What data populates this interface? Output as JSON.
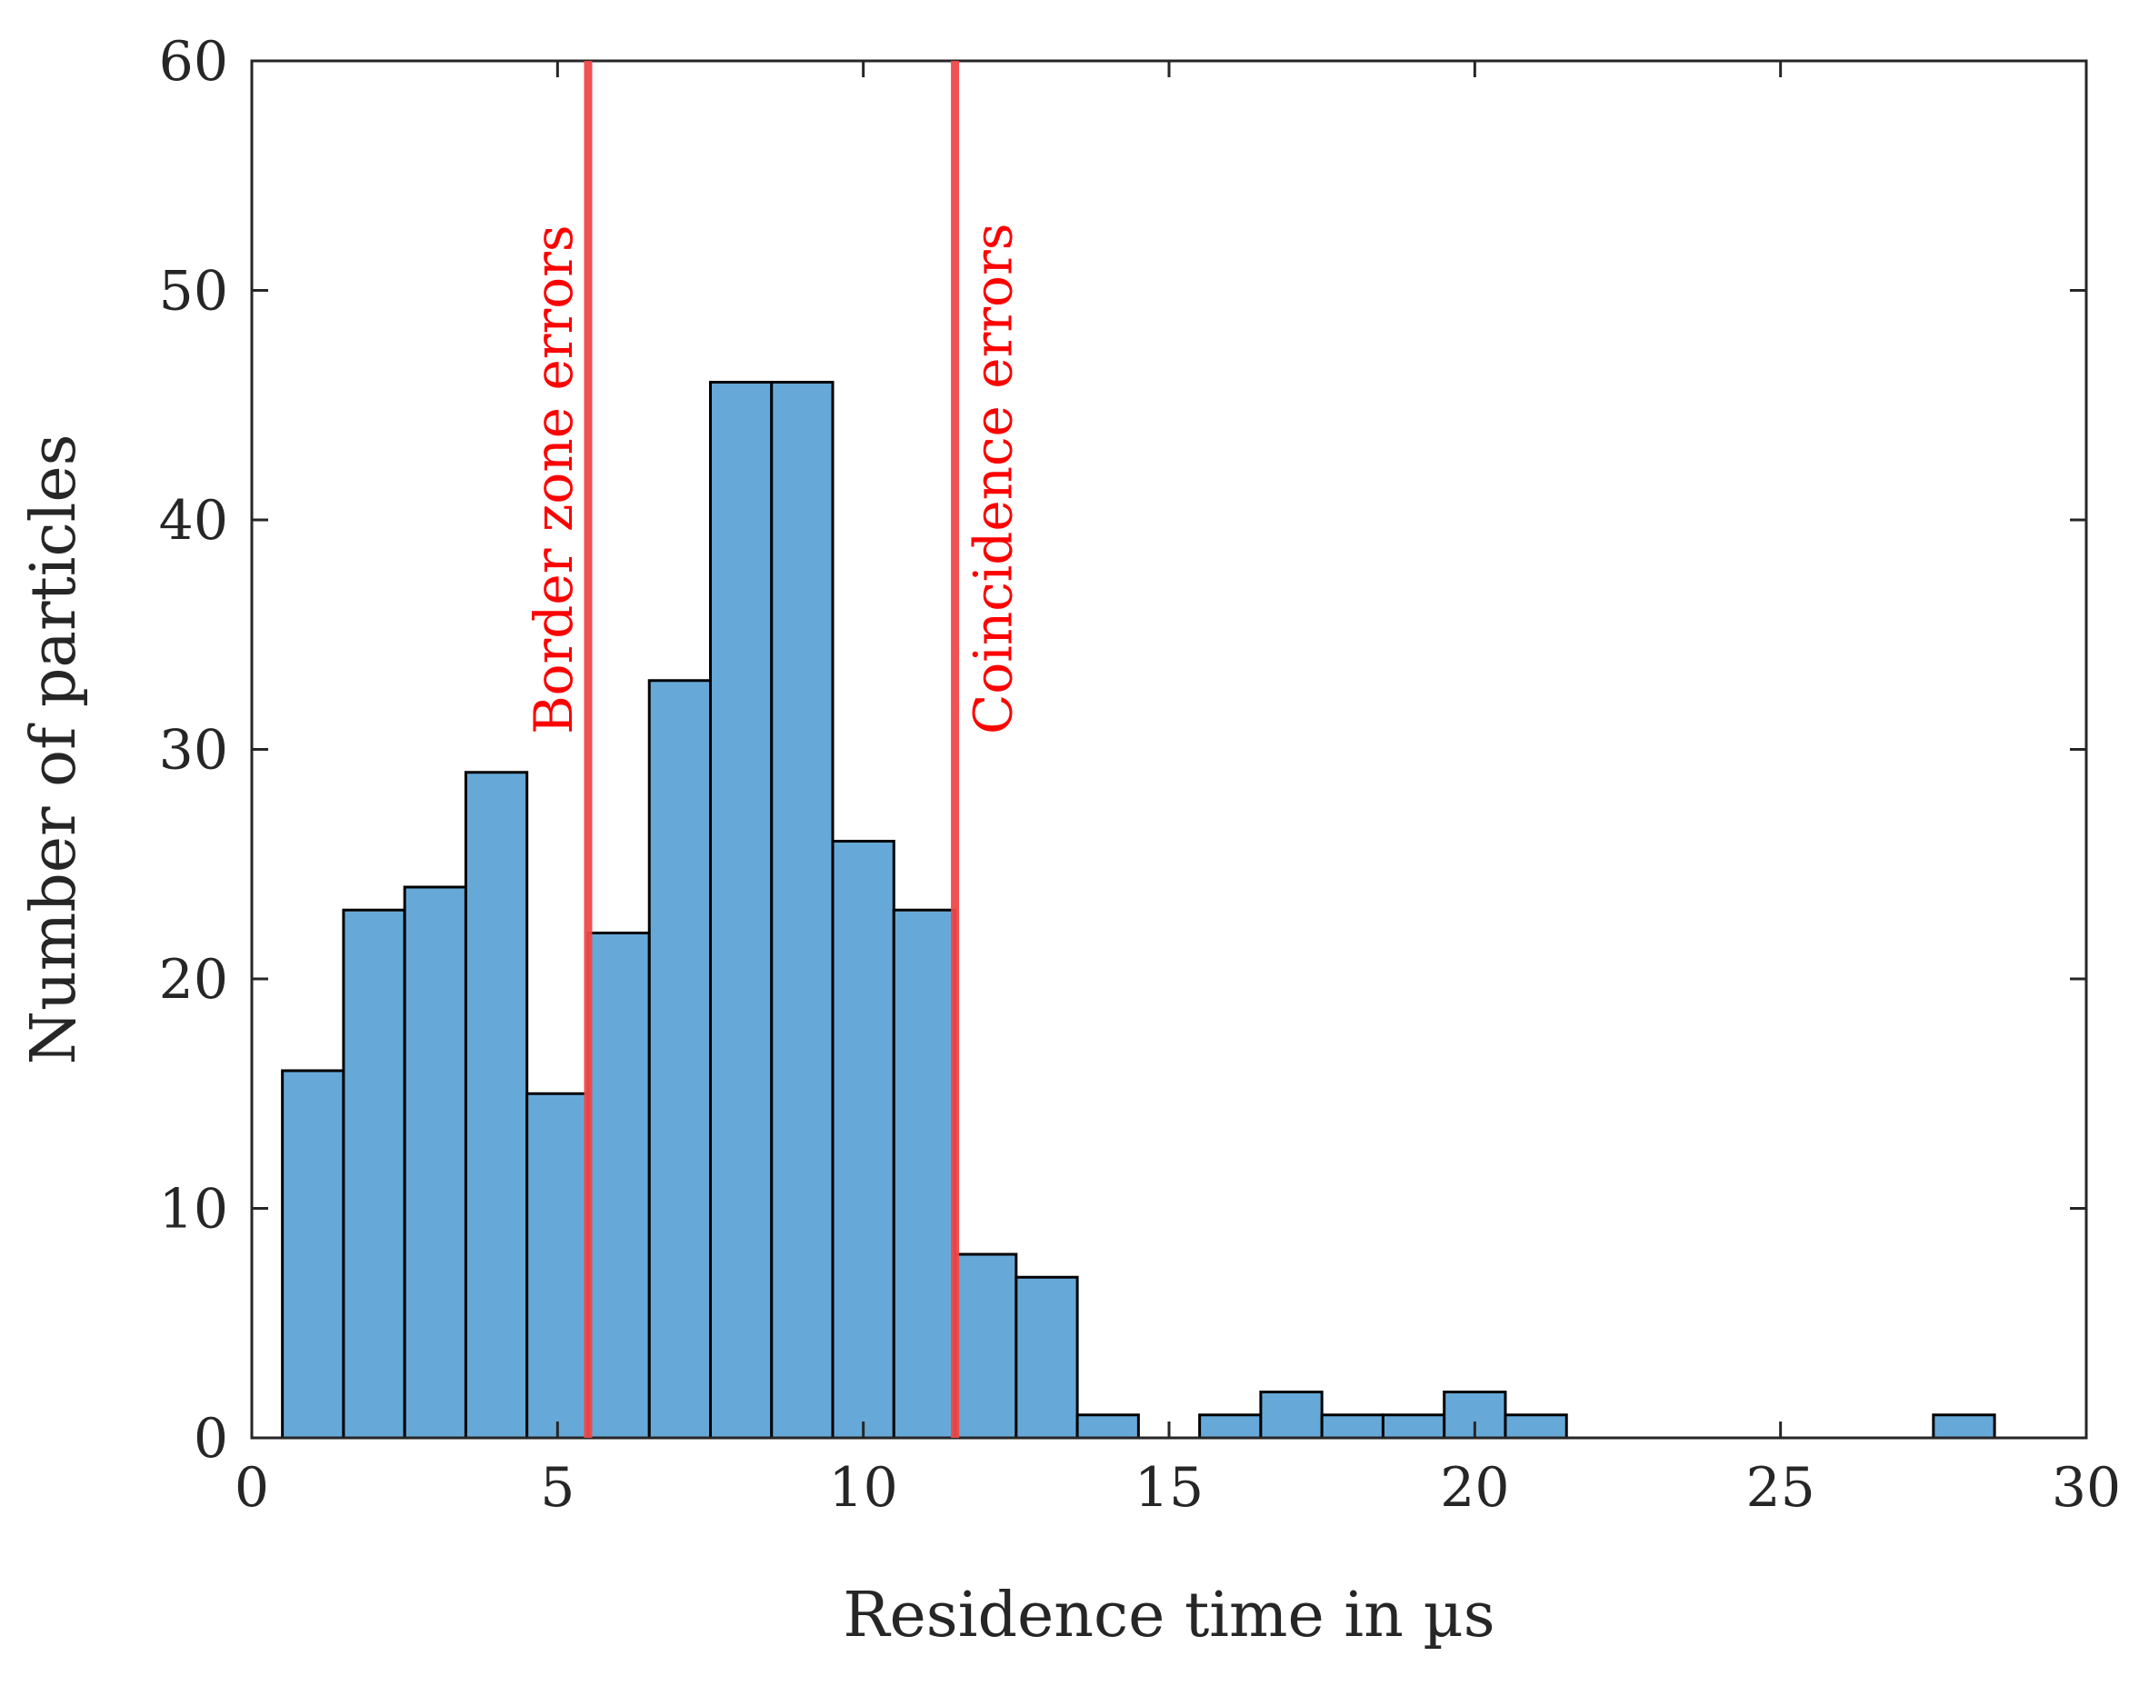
{
  "chart_data": {
    "type": "bar",
    "subtype": "histogram",
    "title": "",
    "xlabel": "Residence time in µs",
    "ylabel": "Number of particles",
    "xlim": [
      0,
      30
    ],
    "ylim": [
      0,
      60
    ],
    "xticks": [
      0,
      5,
      10,
      15,
      20,
      25,
      30
    ],
    "yticks": [
      0,
      10,
      20,
      30,
      40,
      50,
      60
    ],
    "grid": false,
    "bin_width": 1,
    "bins": [
      {
        "start": 0.5,
        "end": 1.5,
        "value": 16
      },
      {
        "start": 1.5,
        "end": 2.5,
        "value": 23
      },
      {
        "start": 2.5,
        "end": 3.5,
        "value": 24
      },
      {
        "start": 3.5,
        "end": 4.5,
        "value": 29
      },
      {
        "start": 4.5,
        "end": 5.5,
        "value": 15
      },
      {
        "start": 5.5,
        "end": 6.5,
        "value": 22
      },
      {
        "start": 6.5,
        "end": 7.5,
        "value": 33
      },
      {
        "start": 7.5,
        "end": 8.5,
        "value": 46
      },
      {
        "start": 8.5,
        "end": 9.5,
        "value": 46
      },
      {
        "start": 9.5,
        "end": 10.5,
        "value": 26
      },
      {
        "start": 10.5,
        "end": 11.5,
        "value": 23
      },
      {
        "start": 11.5,
        "end": 12.5,
        "value": 8
      },
      {
        "start": 12.5,
        "end": 13.5,
        "value": 7
      },
      {
        "start": 13.5,
        "end": 14.5,
        "value": 1
      },
      {
        "start": 14.5,
        "end": 15.5,
        "value": 0
      },
      {
        "start": 15.5,
        "end": 16.5,
        "value": 1
      },
      {
        "start": 16.5,
        "end": 17.5,
        "value": 2
      },
      {
        "start": 17.5,
        "end": 18.5,
        "value": 1
      },
      {
        "start": 18.5,
        "end": 19.5,
        "value": 1
      },
      {
        "start": 19.5,
        "end": 20.5,
        "value": 2
      },
      {
        "start": 20.5,
        "end": 21.5,
        "value": 1
      },
      {
        "start": 27.5,
        "end": 28.5,
        "value": 1
      }
    ],
    "annotations": [
      {
        "label": "Border zone errors",
        "x": 5.5
      },
      {
        "label": "Coincidence errors",
        "x": 11.5
      }
    ],
    "colors": {
      "bar_fill": "#66a9d8",
      "bar_edge": "#000000",
      "threshold_line": "#f04848",
      "threshold_text": "#ff0000",
      "axis": "#262626"
    }
  }
}
